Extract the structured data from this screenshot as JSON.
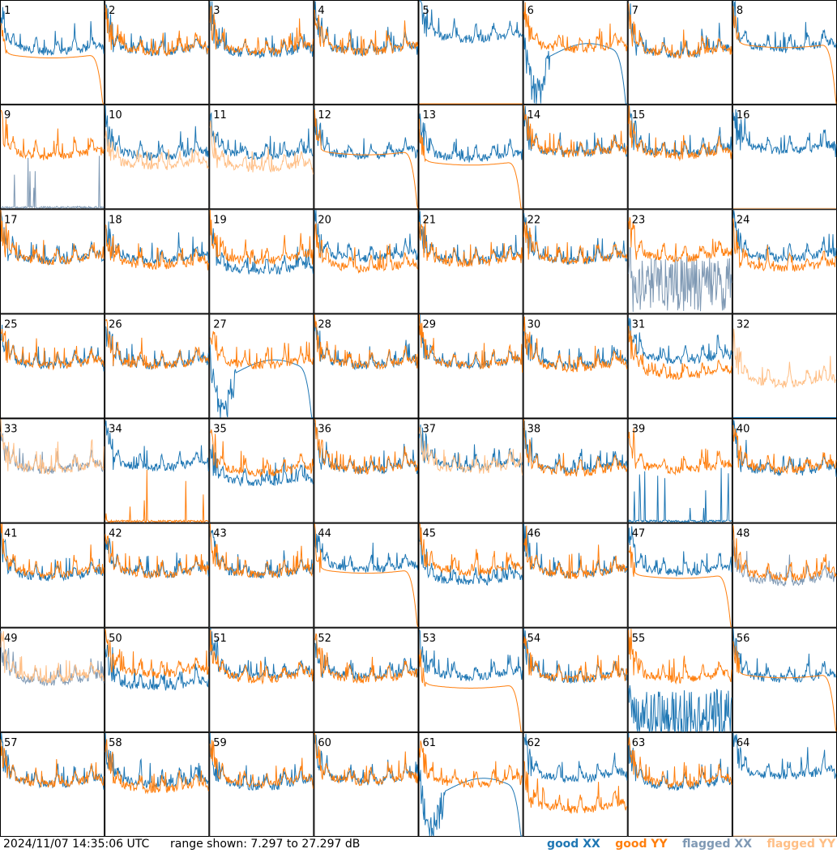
{
  "timestamp": "2024/11/07 14:35:06 UTC",
  "range_text": "range shown: 7.297 to 27.297 dB",
  "legend": {
    "good_xx": "good XX",
    "good_yy": "good YY",
    "flagged_xx": "flagged XX",
    "flagged_yy": "flagged YY"
  },
  "colors": {
    "good_xx": "#1f77b4",
    "good_yy": "#ff7f0e",
    "flagged_xx": "#7f99b4",
    "flagged_yy": "#ffbf86"
  },
  "chart_data": {
    "type": "line",
    "layout": "8x8 small multiples, one panel per tile/antenna",
    "ylim": [
      7.297,
      27.297
    ],
    "y_unit": "dB",
    "grid": false,
    "panels": [
      {
        "id": "1",
        "xx": {
          "state": "good",
          "shape": "spiky",
          "level": 19.0
        },
        "yy": {
          "state": "good",
          "shape": "smooth_dropoff",
          "level": 17.0
        }
      },
      {
        "id": "2",
        "xx": {
          "state": "good",
          "shape": "spiky",
          "level": 19.0
        },
        "yy": {
          "state": "good",
          "shape": "spiky",
          "level": 19.0
        }
      },
      {
        "id": "3",
        "xx": {
          "state": "good",
          "shape": "spiky",
          "level": 18.5
        },
        "yy": {
          "state": "good",
          "shape": "spiky",
          "level": 19.0
        }
      },
      {
        "id": "4",
        "xx": {
          "state": "good",
          "shape": "spiky",
          "level": 19.0
        },
        "yy": {
          "state": "good",
          "shape": "spiky",
          "level": 19.0
        }
      },
      {
        "id": "5",
        "xx": {
          "state": "good",
          "shape": "spiky",
          "level": 21.5
        },
        "yy": {
          "state": "good",
          "shape": "dead",
          "level": 7.3
        }
      },
      {
        "id": "6",
        "xx": {
          "state": "good",
          "shape": "deep_dip",
          "level": 16.5
        },
        "yy": {
          "state": "good",
          "shape": "spiky",
          "level": 19.5
        }
      },
      {
        "id": "7",
        "xx": {
          "state": "good",
          "shape": "spiky",
          "level": 18.5
        },
        "yy": {
          "state": "good",
          "shape": "spiky",
          "level": 18.5
        }
      },
      {
        "id": "8",
        "xx": {
          "state": "good",
          "shape": "spiky",
          "level": 19.5
        },
        "yy": {
          "state": "good",
          "shape": "smooth_dropoff",
          "level": 19.0
        }
      },
      {
        "id": "9",
        "xx": {
          "state": "flagged",
          "shape": "sparse",
          "level": 8.0
        },
        "yy": {
          "state": "good",
          "shape": "spiky",
          "level": 19.0
        }
      },
      {
        "id": "10",
        "xx": {
          "state": "good",
          "shape": "spiky",
          "level": 19.0
        },
        "yy": {
          "state": "flagged",
          "shape": "spiky",
          "level": 17.0
        }
      },
      {
        "id": "11",
        "xx": {
          "state": "good",
          "shape": "spiky",
          "level": 19.0
        },
        "yy": {
          "state": "flagged",
          "shape": "spiky",
          "level": 16.5
        }
      },
      {
        "id": "12",
        "xx": {
          "state": "good",
          "shape": "spiky",
          "level": 19.0
        },
        "yy": {
          "state": "good",
          "shape": "smooth_dropoff",
          "level": 18.5
        }
      },
      {
        "id": "13",
        "xx": {
          "state": "good",
          "shape": "spiky",
          "level": 18.5
        },
        "yy": {
          "state": "good",
          "shape": "smooth_dropoff",
          "level": 16.5
        }
      },
      {
        "id": "14",
        "xx": {
          "state": "good",
          "shape": "spiky",
          "level": 19.5
        },
        "yy": {
          "state": "good",
          "shape": "spiky",
          "level": 19.5
        }
      },
      {
        "id": "15",
        "xx": {
          "state": "good",
          "shape": "spiky",
          "level": 19.5
        },
        "yy": {
          "state": "good",
          "shape": "spiky",
          "level": 19.0
        }
      },
      {
        "id": "16",
        "xx": {
          "state": "good",
          "shape": "spiky",
          "level": 20.0
        },
        "yy": {
          "state": "flagged",
          "shape": "dead",
          "level": 7.3
        }
      },
      {
        "id": "17",
        "xx": {
          "state": "good",
          "shape": "spiky",
          "level": 19.0
        },
        "yy": {
          "state": "good",
          "shape": "spiky",
          "level": 19.0
        }
      },
      {
        "id": "18",
        "xx": {
          "state": "good",
          "shape": "spiky",
          "level": 19.0
        },
        "yy": {
          "state": "good",
          "shape": "spiky",
          "level": 18.0
        }
      },
      {
        "id": "19",
        "xx": {
          "state": "good",
          "shape": "spiky",
          "level": 17.0
        },
        "yy": {
          "state": "good",
          "shape": "spiky",
          "level": 19.0
        }
      },
      {
        "id": "20",
        "xx": {
          "state": "good",
          "shape": "spiky",
          "level": 19.5
        },
        "yy": {
          "state": "good",
          "shape": "spiky",
          "level": 17.5
        }
      },
      {
        "id": "21",
        "xx": {
          "state": "good",
          "shape": "spiky",
          "level": 19.0
        },
        "yy": {
          "state": "good",
          "shape": "spiky",
          "level": 18.5
        }
      },
      {
        "id": "22",
        "xx": {
          "state": "good",
          "shape": "spiky",
          "level": 19.0
        },
        "yy": {
          "state": "good",
          "shape": "spiky",
          "level": 19.0
        }
      },
      {
        "id": "23",
        "xx": {
          "state": "flagged",
          "shape": "noisy",
          "level": 13.0
        },
        "yy": {
          "state": "good",
          "shape": "spiky",
          "level": 19.5
        }
      },
      {
        "id": "24",
        "xx": {
          "state": "good",
          "shape": "spiky",
          "level": 19.5
        },
        "yy": {
          "state": "good",
          "shape": "spiky",
          "level": 17.5
        }
      },
      {
        "id": "25",
        "xx": {
          "state": "good",
          "shape": "spiky",
          "level": 19.0
        },
        "yy": {
          "state": "good",
          "shape": "spiky",
          "level": 19.0
        }
      },
      {
        "id": "26",
        "xx": {
          "state": "good",
          "shape": "spiky",
          "level": 19.0
        },
        "yy": {
          "state": "good",
          "shape": "spiky",
          "level": 19.0
        }
      },
      {
        "id": "27",
        "xx": {
          "state": "good",
          "shape": "deep_dip",
          "level": 16.0
        },
        "yy": {
          "state": "good",
          "shape": "spiky",
          "level": 19.0
        }
      },
      {
        "id": "28",
        "xx": {
          "state": "good",
          "shape": "spiky",
          "level": 19.0
        },
        "yy": {
          "state": "good",
          "shape": "spiky",
          "level": 19.0
        }
      },
      {
        "id": "29",
        "xx": {
          "state": "good",
          "shape": "spiky",
          "level": 19.0
        },
        "yy": {
          "state": "good",
          "shape": "spiky",
          "level": 19.0
        }
      },
      {
        "id": "30",
        "xx": {
          "state": "good",
          "shape": "spiky",
          "level": 19.0
        },
        "yy": {
          "state": "good",
          "shape": "spiky",
          "level": 18.5
        }
      },
      {
        "id": "31",
        "xx": {
          "state": "good",
          "shape": "spiky",
          "level": 20.0
        },
        "yy": {
          "state": "good",
          "shape": "spiky",
          "level": 17.0
        }
      },
      {
        "id": "32",
        "xx": {
          "state": "good",
          "shape": "dead",
          "level": 7.3
        },
        "yy": {
          "state": "flagged",
          "shape": "spiky",
          "level": 15.5
        }
      },
      {
        "id": "33",
        "xx": {
          "state": "flagged",
          "shape": "spiky",
          "level": 19.0
        },
        "yy": {
          "state": "flagged",
          "shape": "spiky",
          "level": 19.0
        }
      },
      {
        "id": "34",
        "xx": {
          "state": "good",
          "shape": "spiky",
          "level": 19.5
        },
        "yy": {
          "state": "good",
          "shape": "sparse",
          "level": 8.5
        }
      },
      {
        "id": "35",
        "xx": {
          "state": "good",
          "shape": "spiky",
          "level": 16.5
        },
        "yy": {
          "state": "good",
          "shape": "spiky",
          "level": 18.5
        }
      },
      {
        "id": "36",
        "xx": {
          "state": "good",
          "shape": "spiky",
          "level": 19.0
        },
        "yy": {
          "state": "good",
          "shape": "spiky",
          "level": 19.0
        }
      },
      {
        "id": "37",
        "xx": {
          "state": "good",
          "shape": "spiky",
          "level": 19.5
        },
        "yy": {
          "state": "flagged",
          "shape": "spiky",
          "level": 19.0
        }
      },
      {
        "id": "38",
        "xx": {
          "state": "good",
          "shape": "spiky",
          "level": 19.0
        },
        "yy": {
          "state": "good",
          "shape": "spiky",
          "level": 18.5
        }
      },
      {
        "id": "39",
        "xx": {
          "state": "good",
          "shape": "sparse",
          "level": 7.5
        },
        "yy": {
          "state": "good",
          "shape": "spiky",
          "level": 19.0
        }
      },
      {
        "id": "40",
        "xx": {
          "state": "good",
          "shape": "spiky",
          "level": 18.5
        },
        "yy": {
          "state": "good",
          "shape": "spiky",
          "level": 19.0
        }
      },
      {
        "id": "41",
        "xx": {
          "state": "good",
          "shape": "spiky",
          "level": 18.5
        },
        "yy": {
          "state": "good",
          "shape": "spiky",
          "level": 19.0
        }
      },
      {
        "id": "42",
        "xx": {
          "state": "good",
          "shape": "spiky",
          "level": 19.0
        },
        "yy": {
          "state": "good",
          "shape": "spiky",
          "level": 19.0
        }
      },
      {
        "id": "43",
        "xx": {
          "state": "good",
          "shape": "spiky",
          "level": 19.0
        },
        "yy": {
          "state": "good",
          "shape": "spiky",
          "level": 19.0
        }
      },
      {
        "id": "44",
        "xx": {
          "state": "good",
          "shape": "spiky",
          "level": 20.0
        },
        "yy": {
          "state": "good",
          "shape": "smooth_dropoff",
          "level": 18.5
        }
      },
      {
        "id": "45",
        "xx": {
          "state": "good",
          "shape": "spiky",
          "level": 17.5
        },
        "yy": {
          "state": "good",
          "shape": "spiky",
          "level": 19.5
        }
      },
      {
        "id": "46",
        "xx": {
          "state": "good",
          "shape": "spiky",
          "level": 19.0
        },
        "yy": {
          "state": "good",
          "shape": "spiky",
          "level": 19.0
        }
      },
      {
        "id": "47",
        "xx": {
          "state": "good",
          "shape": "spiky",
          "level": 19.5
        },
        "yy": {
          "state": "good",
          "shape": "smooth_dropoff",
          "level": 17.5
        }
      },
      {
        "id": "48",
        "xx": {
          "state": "flagged",
          "shape": "spiky",
          "level": 17.5
        },
        "yy": {
          "state": "good",
          "shape": "spiky",
          "level": 18.5
        }
      },
      {
        "id": "49",
        "xx": {
          "state": "flagged",
          "shape": "spiky",
          "level": 18.5
        },
        "yy": {
          "state": "flagged",
          "shape": "spiky",
          "level": 19.0
        }
      },
      {
        "id": "50",
        "xx": {
          "state": "good",
          "shape": "spiky",
          "level": 17.5
        },
        "yy": {
          "state": "good",
          "shape": "spiky",
          "level": 20.0
        }
      },
      {
        "id": "51",
        "xx": {
          "state": "good",
          "shape": "spiky",
          "level": 19.5
        },
        "yy": {
          "state": "good",
          "shape": "spiky",
          "level": 19.0
        }
      },
      {
        "id": "52",
        "xx": {
          "state": "good",
          "shape": "spiky",
          "level": 19.5
        },
        "yy": {
          "state": "good",
          "shape": "spiky",
          "level": 19.0
        }
      },
      {
        "id": "53",
        "xx": {
          "state": "good",
          "shape": "spiky",
          "level": 19.5
        },
        "yy": {
          "state": "good",
          "shape": "smooth_dropoff",
          "level": 16.5
        }
      },
      {
        "id": "54",
        "xx": {
          "state": "good",
          "shape": "spiky",
          "level": 19.0
        },
        "yy": {
          "state": "good",
          "shape": "spiky",
          "level": 19.0
        }
      },
      {
        "id": "55",
        "xx": {
          "state": "good",
          "shape": "noisy",
          "level": 10.0
        },
        "yy": {
          "state": "good",
          "shape": "spiky",
          "level": 19.0
        }
      },
      {
        "id": "56",
        "xx": {
          "state": "good",
          "shape": "spiky",
          "level": 19.0
        },
        "yy": {
          "state": "good",
          "shape": "smooth_dropoff",
          "level": 18.5
        }
      },
      {
        "id": "57",
        "xx": {
          "state": "good",
          "shape": "spiky",
          "level": 19.0
        },
        "yy": {
          "state": "good",
          "shape": "spiky",
          "level": 19.0
        }
      },
      {
        "id": "58",
        "xx": {
          "state": "good",
          "shape": "spiky",
          "level": 19.0
        },
        "yy": {
          "state": "good",
          "shape": "spiky",
          "level": 18.0
        }
      },
      {
        "id": "59",
        "xx": {
          "state": "good",
          "shape": "spiky",
          "level": 18.5
        },
        "yy": {
          "state": "good",
          "shape": "spiky",
          "level": 19.0
        }
      },
      {
        "id": "60",
        "xx": {
          "state": "good",
          "shape": "spiky",
          "level": 19.5
        },
        "yy": {
          "state": "good",
          "shape": "spiky",
          "level": 19.5
        }
      },
      {
        "id": "61",
        "xx": {
          "state": "good",
          "shape": "deep_dip",
          "level": 16.0
        },
        "yy": {
          "state": "good",
          "shape": "spiky",
          "level": 19.0
        }
      },
      {
        "id": "62",
        "xx": {
          "state": "good",
          "shape": "spiky",
          "level": 20.0
        },
        "yy": {
          "state": "good",
          "shape": "spiky",
          "level": 14.0
        }
      },
      {
        "id": "63",
        "xx": {
          "state": "good",
          "shape": "spiky",
          "level": 18.5
        },
        "yy": {
          "state": "good",
          "shape": "spiky",
          "level": 19.0
        }
      },
      {
        "id": "64",
        "xx": {
          "state": "good",
          "shape": "spiky",
          "level": 20.5
        },
        "yy": {
          "state": "flagged",
          "shape": "dead",
          "level": 7.3
        }
      }
    ]
  }
}
